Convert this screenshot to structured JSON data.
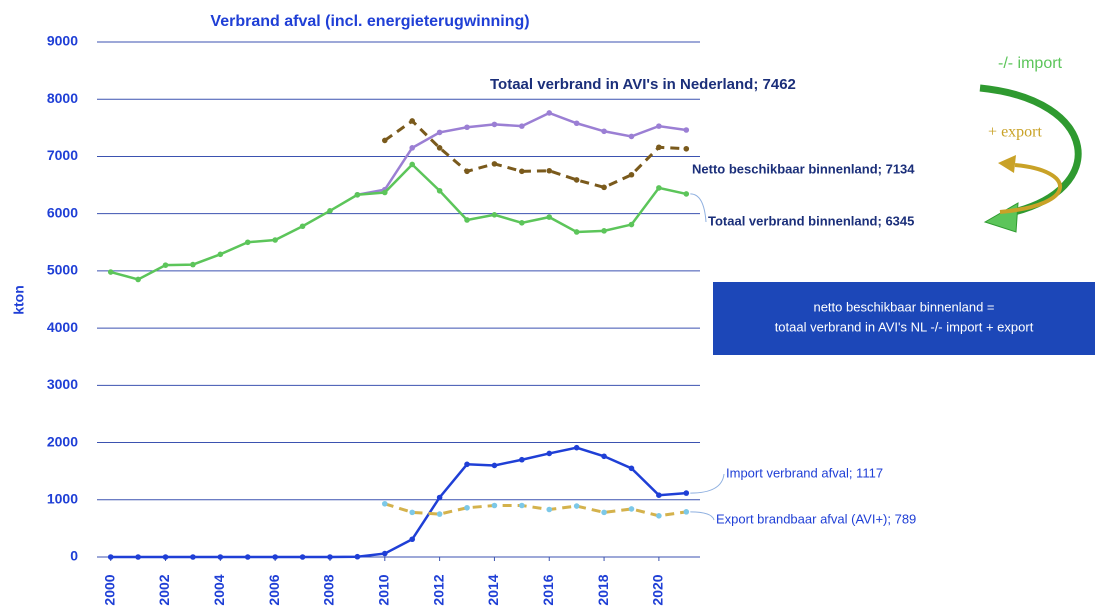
{
  "chart_data": {
    "type": "line",
    "title": "Verbrand  afval (incl. energieterugwinning)",
    "y_label": "kton",
    "x": [
      2000,
      2001,
      2002,
      2003,
      2004,
      2005,
      2006,
      2007,
      2008,
      2009,
      2010,
      2011,
      2012,
      2013,
      2014,
      2015,
      2016,
      2017,
      2018,
      2019,
      2020,
      2021
    ],
    "xlim": [
      1999.5,
      2021.5
    ],
    "xticks": [
      2000,
      2002,
      2004,
      2006,
      2008,
      2010,
      2012,
      2014,
      2016,
      2018,
      2020
    ],
    "ylim": [
      0,
      9000
    ],
    "yticks": [
      0,
      1000,
      2000,
      3000,
      4000,
      5000,
      6000,
      7000,
      8000,
      9000
    ],
    "grid": true,
    "series": [
      {
        "name": "Totaal verbrand  in AVI's in Nederland;  7462",
        "color": "#9b7fd4",
        "dashed": false,
        "marker_color": "#9b7fd4",
        "values": [
          null,
          null,
          null,
          null,
          null,
          null,
          null,
          null,
          null,
          6330,
          6420,
          7150,
          7420,
          7510,
          7560,
          7530,
          7760,
          7580,
          7440,
          7350,
          7530,
          7462
        ]
      },
      {
        "name": "Netto beschikbaar binnenland; 7134",
        "color": "#7a5a1c",
        "dashed": true,
        "marker_color": "#7a5a1c",
        "values": [
          null,
          null,
          null,
          null,
          null,
          null,
          null,
          null,
          null,
          null,
          7280,
          7620,
          7150,
          6740,
          6870,
          6740,
          6750,
          6590,
          6460,
          6680,
          7160,
          7134
        ]
      },
      {
        "name": "Totaal verbrand binnenland; 6345",
        "color": "#5cc55a",
        "dashed": false,
        "marker_color": "#5cc55a",
        "values": [
          4980,
          4850,
          5100,
          5110,
          5290,
          5500,
          5540,
          5780,
          6050,
          6330,
          6370,
          6860,
          6400,
          5890,
          5980,
          5840,
          5940,
          5680,
          5700,
          5810,
          6450,
          6345
        ]
      },
      {
        "name": "Import verbrand afval; 1117",
        "color": "#1f3fd6",
        "dashed": false,
        "marker_color": "#1f3fd6",
        "values": [
          0,
          0,
          0,
          0,
          0,
          0,
          0,
          0,
          0,
          5,
          60,
          310,
          1040,
          1620,
          1600,
          1700,
          1810,
          1910,
          1760,
          1550,
          1080,
          1117
        ]
      },
      {
        "name": "Export brandbaar afval (AVI+); 789",
        "color": "#d4b24c",
        "dashed": true,
        "marker_color": "#7cc8e8",
        "values": [
          null,
          null,
          null,
          null,
          null,
          null,
          null,
          null,
          null,
          null,
          930,
          780,
          750,
          860,
          900,
          900,
          830,
          890,
          780,
          840,
          720,
          789
        ]
      }
    ],
    "annotations": [
      "-/- import",
      "+ export",
      "netto beschikbaar binnenland =",
      "totaal verbrand in AVI's NL -/- import + export"
    ]
  }
}
